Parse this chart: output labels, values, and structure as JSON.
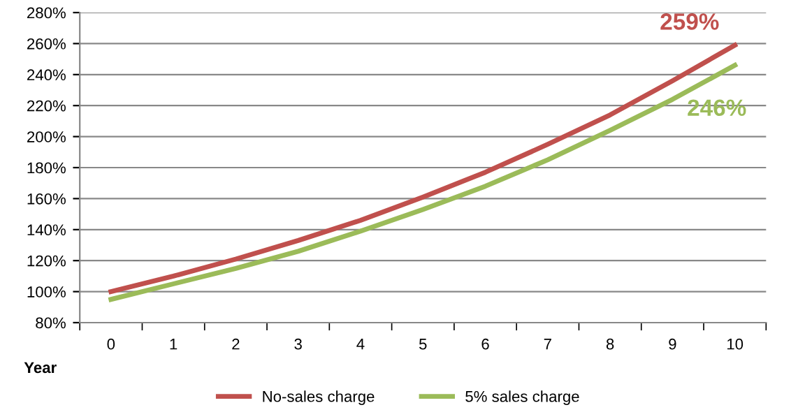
{
  "chart_data": {
    "type": "line",
    "xlabel": "Year",
    "categories": [
      "0",
      "1",
      "2",
      "3",
      "4",
      "5",
      "6",
      "7",
      "8",
      "9",
      "10"
    ],
    "series": [
      {
        "name": "No-sales charge",
        "color": "#c0504d",
        "values": [
          100,
          110,
          121,
          133,
          146,
          161,
          177,
          195,
          214,
          236,
          259
        ]
      },
      {
        "name": "5% sales charge",
        "color": "#9bbb59",
        "values": [
          95,
          105,
          115,
          126,
          139,
          153,
          168,
          185,
          204,
          224,
          246
        ]
      }
    ],
    "ylim": [
      80,
      280
    ],
    "yticks": [
      {
        "value": 80,
        "label": "80%"
      },
      {
        "value": 100,
        "label": "100%"
      },
      {
        "value": 120,
        "label": "120%"
      },
      {
        "value": 140,
        "label": "140%"
      },
      {
        "value": 160,
        "label": "160%"
      },
      {
        "value": 180,
        "label": "180%"
      },
      {
        "value": 200,
        "label": "200%"
      },
      {
        "value": 220,
        "label": "220%"
      },
      {
        "value": 240,
        "label": "240%"
      },
      {
        "value": 260,
        "label": "260%"
      },
      {
        "value": 280,
        "label": "280%"
      }
    ],
    "annotations": [
      {
        "text": "259%",
        "x": "10",
        "y": 259
      },
      {
        "text": "246%",
        "x": "10",
        "y": 246
      }
    ],
    "grid": "y",
    "legend": "bottom",
    "marker": "none",
    "line_style": "solid"
  }
}
